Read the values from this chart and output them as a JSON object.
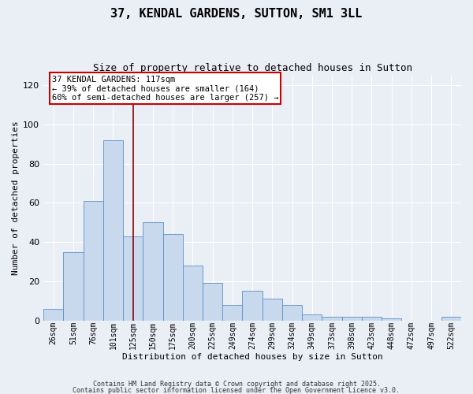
{
  "title1": "37, KENDAL GARDENS, SUTTON, SM1 3LL",
  "title2": "Size of property relative to detached houses in Sutton",
  "xlabel": "Distribution of detached houses by size in Sutton",
  "ylabel": "Number of detached properties",
  "bar_labels": [
    "26sqm",
    "51sqm",
    "76sqm",
    "101sqm",
    "125sqm",
    "150sqm",
    "175sqm",
    "200sqm",
    "225sqm",
    "249sqm",
    "274sqm",
    "299sqm",
    "324sqm",
    "349sqm",
    "373sqm",
    "398sqm",
    "423sqm",
    "448sqm",
    "472sqm",
    "497sqm",
    "522sqm"
  ],
  "bar_heights": [
    6,
    35,
    61,
    92,
    43,
    50,
    44,
    28,
    19,
    8,
    15,
    11,
    8,
    3,
    2,
    2,
    2,
    1,
    0,
    0,
    2
  ],
  "bar_color": "#c8d9ee",
  "bar_edge_color": "#5b8fc7",
  "vline_x": 4.0,
  "vline_color": "#880000",
  "ylim": [
    0,
    125
  ],
  "yticks": [
    0,
    20,
    40,
    60,
    80,
    100,
    120
  ],
  "annotation_text": "37 KENDAL GARDENS: 117sqm\n← 39% of detached houses are smaller (164)\n60% of semi-detached houses are larger (257) →",
  "annotation_box_color": "#ffffff",
  "annotation_box_edge": "#cc0000",
  "bg_color": "#eaeef5",
  "grid_color": "#ffffff",
  "footer1": "Contains HM Land Registry data © Crown copyright and database right 2025.",
  "footer2": "Contains public sector information licensed under the Open Government Licence v3.0."
}
